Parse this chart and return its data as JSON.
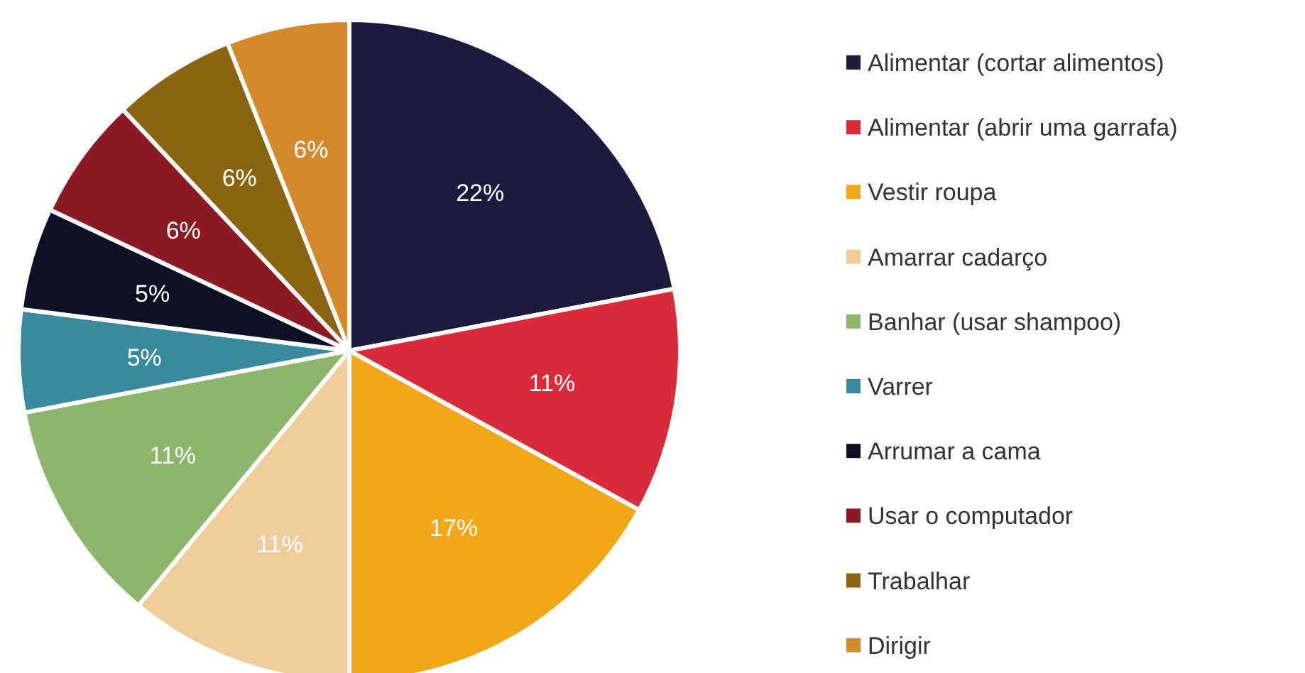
{
  "chart_data": {
    "type": "pie",
    "categories": [
      "Alimentar (cortar alimentos)",
      "Alimentar (abrir uma garrafa)",
      "Vestir roupa",
      "Amarrar cadarço",
      "Banhar (usar shampoo)",
      "Varrer",
      "Arrumar a cama",
      "Usar o computador",
      "Trabalhar",
      "Dirigir"
    ],
    "values": [
      22,
      11,
      17,
      11,
      11,
      5,
      5,
      6,
      6,
      6
    ],
    "value_labels": [
      "22%",
      "11%",
      "17%",
      "11%",
      "11%",
      "5%",
      "5%",
      "6%",
      "6%",
      "6%"
    ],
    "colors": [
      "#1c1a3d",
      "#d92b3a",
      "#f0a818",
      "#f0cc9a",
      "#8db56e",
      "#3a8a9e",
      "#0f1026",
      "#8b1a24",
      "#8a6410",
      "#d4892a"
    ],
    "legend": "right"
  }
}
